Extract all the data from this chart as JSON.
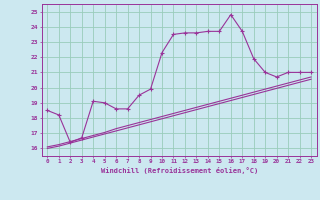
{
  "xlabel": "Windchill (Refroidissement éolien,°C)",
  "bg_color": "#cce8f0",
  "line_color": "#993399",
  "grid_color": "#99ccbb",
  "x_ticks": [
    0,
    1,
    2,
    3,
    4,
    5,
    6,
    7,
    8,
    9,
    10,
    11,
    12,
    13,
    14,
    15,
    16,
    17,
    18,
    19,
    20,
    21,
    22,
    23
  ],
  "y_ticks": [
    16,
    17,
    18,
    19,
    20,
    21,
    22,
    23,
    24,
    25
  ],
  "xlim": [
    -0.5,
    23.5
  ],
  "ylim": [
    15.5,
    25.5
  ],
  "series1_x": [
    0,
    1,
    2,
    3,
    4,
    5,
    6,
    7,
    8,
    9,
    10,
    11,
    12,
    13,
    14,
    15,
    16,
    17,
    18,
    19,
    20,
    21,
    22,
    23
  ],
  "series1_y": [
    18.5,
    18.2,
    16.4,
    16.7,
    19.1,
    19.0,
    18.6,
    18.6,
    19.5,
    19.9,
    22.3,
    23.5,
    23.6,
    23.6,
    23.7,
    23.7,
    24.8,
    23.7,
    21.9,
    21.0,
    20.7,
    21.0,
    21.0,
    21.0
  ],
  "series2_x": [
    0,
    1,
    2,
    3,
    4,
    5,
    6,
    7,
    8,
    9,
    10,
    11,
    12,
    13,
    14,
    15,
    16,
    17,
    18,
    19,
    20,
    21,
    22,
    23
  ],
  "series2_y": [
    16.1,
    16.25,
    16.45,
    16.65,
    16.85,
    17.05,
    17.3,
    17.5,
    17.7,
    17.9,
    18.1,
    18.3,
    18.5,
    18.7,
    18.9,
    19.1,
    19.3,
    19.5,
    19.7,
    19.9,
    20.1,
    20.3,
    20.5,
    20.7
  ],
  "series3_x": [
    0,
    1,
    2,
    3,
    4,
    5,
    6,
    7,
    8,
    9,
    10,
    11,
    12,
    13,
    14,
    15,
    16,
    17,
    18,
    19,
    20,
    21,
    22,
    23
  ],
  "series3_y": [
    16.0,
    16.15,
    16.35,
    16.55,
    16.75,
    16.95,
    17.15,
    17.35,
    17.55,
    17.75,
    17.95,
    18.15,
    18.35,
    18.55,
    18.75,
    18.95,
    19.15,
    19.35,
    19.55,
    19.75,
    19.95,
    20.15,
    20.35,
    20.55
  ]
}
